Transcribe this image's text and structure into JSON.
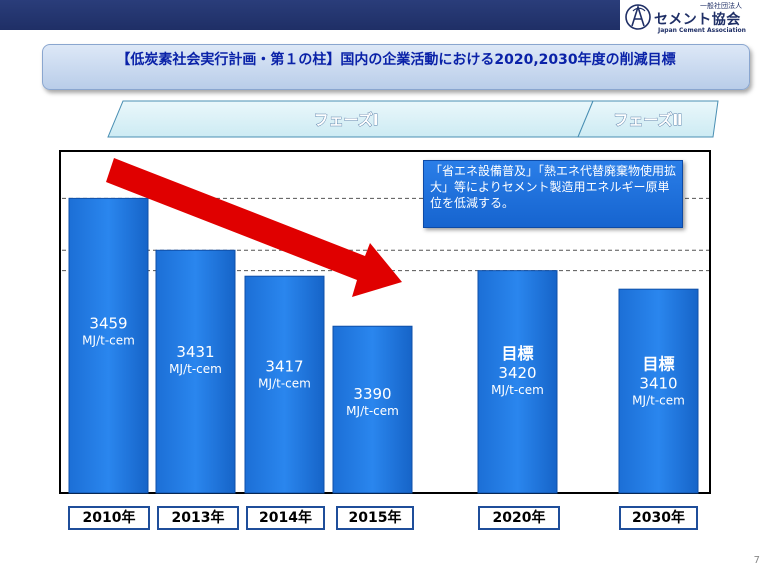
{
  "header": {
    "org_small": "一般社団法人",
    "org_name": "セメント協会",
    "org_en": "Japan Cement Association"
  },
  "title": "【低炭素社会実行計画・第１の柱】国内の企業活動における2020,2030年度の削減目標",
  "phases": [
    "フェーズⅠ",
    "フェーズⅡ"
  ],
  "callout": "「省エネ設備普及」「熱エネ代替廃棄物使用拡大」等によりセメント製造用エネルギー原単位を低減する。",
  "page_number": "7",
  "colors": {
    "bar": "#1b73db",
    "arrow": "#e00000",
    "title_text": "#0a22a8"
  },
  "chart_data": {
    "type": "bar",
    "categories": [
      "2010年",
      "2013年",
      "2014年",
      "2015年",
      "2020年",
      "2030年"
    ],
    "values": [
      3459,
      3431,
      3417,
      3390,
      3420,
      3410
    ],
    "unit": "MJ/t-cem",
    "target_label": "目標",
    "targets": [
      false,
      false,
      false,
      false,
      true,
      true
    ],
    "ylim": [
      3300,
      3470
    ],
    "reference_lines": [
      3459,
      3431,
      3420
    ]
  }
}
